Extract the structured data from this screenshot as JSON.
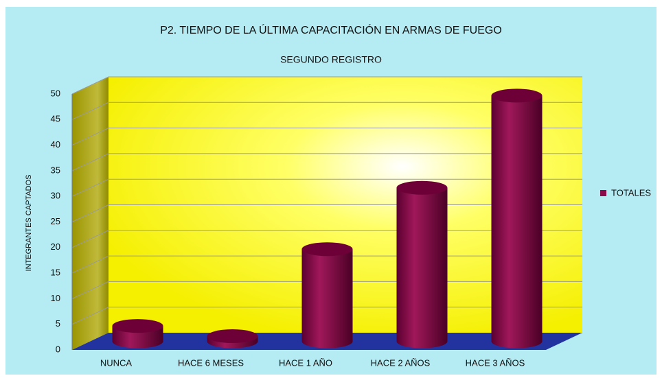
{
  "chart_data": {
    "type": "bar3d",
    "title": "P2. TIEMPO DE LA ÚLTIMA CAPACITACIÓN EN ARMAS DE FUEGO",
    "subtitle": "SEGUNDO REGISTRO",
    "y_label": "INTEGRANTES CAPTADOS",
    "categories": [
      "NUNCA",
      "HACE 6 MESES",
      "HACE 1 AÑO",
      "HACE 2 AÑOS",
      "HACE 3 AÑOS"
    ],
    "series": [
      {
        "name": "TOTALES",
        "color": "#8b0a4a",
        "values": [
          3,
          1,
          18,
          30,
          48
        ]
      }
    ],
    "ylim": [
      0,
      50
    ],
    "yticks": [
      0,
      5,
      10,
      15,
      20,
      25,
      30,
      35,
      40,
      45,
      50
    ],
    "grid": true,
    "legend": "right"
  }
}
